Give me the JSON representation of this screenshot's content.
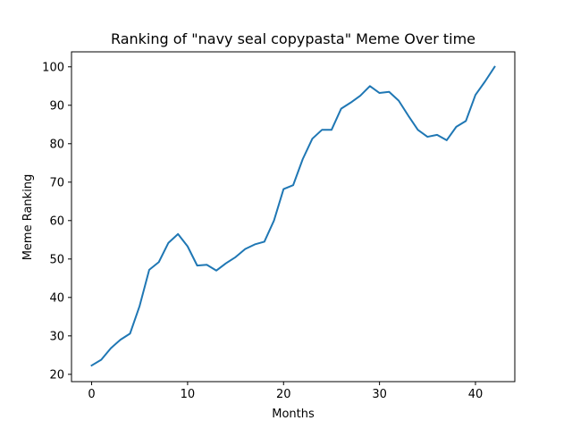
{
  "chart_data": {
    "type": "line",
    "title": "Ranking of \"navy seal copypasta\" Meme Over time",
    "xlabel": "Months",
    "ylabel": "Meme Ranking",
    "xlim": [
      -2.1,
      44.1
    ],
    "ylim": [
      18.1,
      103.9
    ],
    "xticks": [
      0,
      10,
      20,
      30,
      40
    ],
    "yticks": [
      20,
      30,
      40,
      50,
      60,
      70,
      80,
      90,
      100
    ],
    "grid": false,
    "series": [
      {
        "color": "#1f77b4",
        "x": [
          0,
          1,
          2,
          3,
          4,
          5,
          6,
          7,
          8,
          9,
          10,
          11,
          12,
          13,
          14,
          15,
          16,
          17,
          18,
          19,
          20,
          21,
          22,
          23,
          24,
          25,
          26,
          27,
          28,
          29,
          30,
          31,
          32,
          33,
          34,
          35,
          36,
          37,
          38,
          39,
          40,
          41,
          42
        ],
        "values": [
          22.3,
          23.8,
          26.8,
          29.0,
          30.6,
          37.8,
          47.2,
          49.2,
          54.2,
          56.5,
          53.3,
          48.3,
          48.5,
          47.0,
          48.9,
          50.5,
          52.6,
          53.8,
          54.5,
          60.0,
          68.2,
          69.2,
          76.0,
          81.3,
          83.6,
          83.6,
          89.1,
          90.7,
          92.5,
          95.0,
          93.2,
          93.5,
          91.2,
          87.3,
          83.6,
          81.8,
          82.3,
          80.9,
          84.4,
          85.9,
          92.7,
          96.2,
          100.0
        ]
      }
    ]
  }
}
